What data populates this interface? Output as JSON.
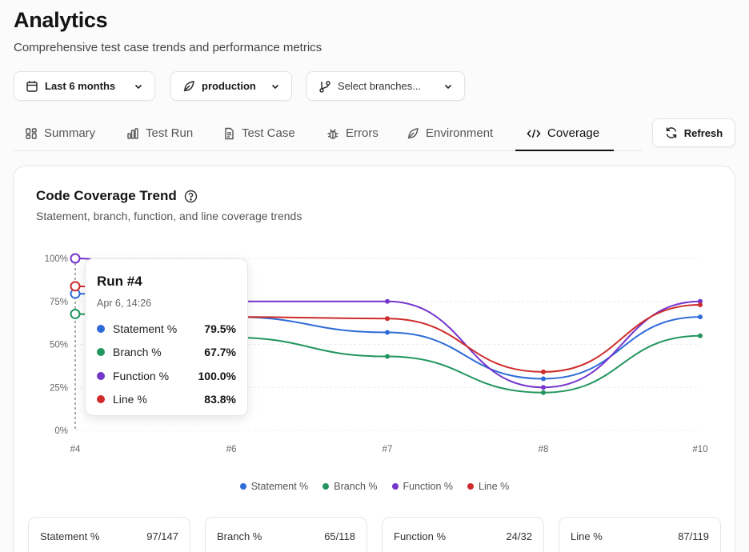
{
  "header": {
    "title": "Analytics",
    "subtitle": "Comprehensive test case trends and performance metrics"
  },
  "filters": {
    "date_range": "Last 6 months",
    "environment": "production",
    "branches_placeholder": "Select branches..."
  },
  "tabs": [
    {
      "label": "Summary",
      "icon": "grid-icon"
    },
    {
      "label": "Test Run",
      "icon": "bar-chart-icon"
    },
    {
      "label": "Test Case",
      "icon": "document-icon"
    },
    {
      "label": "Errors",
      "icon": "bug-icon"
    },
    {
      "label": "Environment",
      "icon": "leaf-icon"
    },
    {
      "label": "Coverage",
      "icon": "code-icon",
      "active": true
    }
  ],
  "refresh_label": "Refresh",
  "card": {
    "title": "Code Coverage Trend",
    "subtitle": "Statement, branch, function, and line coverage trends"
  },
  "chart_data": {
    "type": "line",
    "categories": [
      "#4",
      "#6",
      "#7",
      "#8",
      "#10"
    ],
    "ylim": [
      0,
      100
    ],
    "y_ticks": [
      "0%",
      "25%",
      "50%",
      "75%",
      "100%"
    ],
    "grid": true,
    "legend_position": "bottom",
    "series": [
      {
        "name": "Statement %",
        "color": "#2f6bd8",
        "values": [
          79.5,
          66,
          57,
          30,
          66
        ]
      },
      {
        "name": "Branch %",
        "color": "#22955f",
        "values": [
          67.7,
          54,
          43,
          22,
          55
        ]
      },
      {
        "name": "Function %",
        "color": "#7435cc",
        "values": [
          100.0,
          75,
          75,
          25,
          75
        ]
      },
      {
        "name": "Line %",
        "color": "#cf2b2b",
        "values": [
          83.8,
          66,
          65,
          34,
          73
        ]
      }
    ]
  },
  "tooltip": {
    "title": "Run #4",
    "time": "Apr 6, 14:26",
    "rows": [
      {
        "name": "Statement %",
        "value": "79.5%"
      },
      {
        "name": "Branch %",
        "value": "67.7%"
      },
      {
        "name": "Function %",
        "value": "100.0%"
      },
      {
        "name": "Line %",
        "value": "83.8%"
      }
    ]
  },
  "stats": [
    {
      "label": "Statement %",
      "value": "97/147"
    },
    {
      "label": "Branch %",
      "value": "65/118"
    },
    {
      "label": "Function %",
      "value": "24/32"
    },
    {
      "label": "Line %",
      "value": "87/119"
    }
  ]
}
